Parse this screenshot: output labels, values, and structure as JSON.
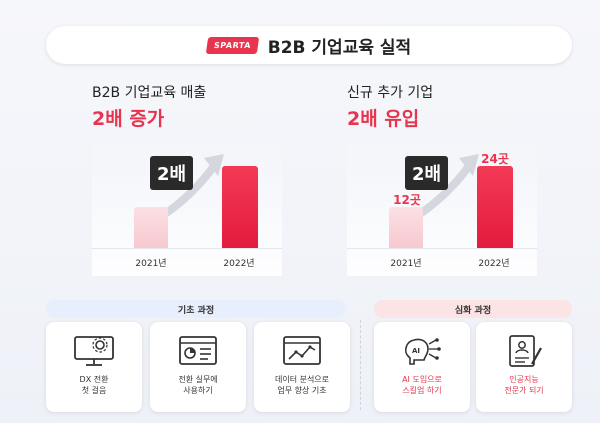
{
  "header": {
    "logo_text": "SPARTA",
    "title": "B2B 기업교육 실적"
  },
  "left_panel": {
    "subtitle": "B2B 기업교육 매출",
    "headline": "2배 증가",
    "badge": "2배",
    "bars": [
      {
        "year": "2021년",
        "relative": 0.5,
        "label": ""
      },
      {
        "year": "2022년",
        "relative": 1.0,
        "label": ""
      }
    ]
  },
  "right_panel": {
    "subtitle": "신규 추가 기업",
    "headline": "2배 유입",
    "badge": "2배",
    "bars": [
      {
        "year": "2021년",
        "relative": 0.5,
        "label": "12곳"
      },
      {
        "year": "2022년",
        "relative": 1.0,
        "label": "24곳"
      }
    ]
  },
  "chart_data": [
    {
      "type": "bar",
      "categories": [
        "2021년",
        "2022년"
      ],
      "values": [
        1,
        2
      ],
      "title": "B2B 기업교육 매출",
      "annotation": "2배"
    },
    {
      "type": "bar",
      "categories": [
        "2021년",
        "2022년"
      ],
      "values": [
        12,
        24
      ],
      "data_labels": [
        "12곳",
        "24곳"
      ],
      "title": "신규 추가 기업",
      "annotation": "2배"
    }
  ],
  "sections": {
    "basic": {
      "label": "기초 과정",
      "cards": [
        {
          "line1": "DX 전환",
          "line2": "첫 걸음",
          "icon": "monitor-gear-icon"
        },
        {
          "line1": "전환 실무에",
          "line2": "사용하기",
          "icon": "dashboard-window-icon"
        },
        {
          "line1": "데이터 분석으로",
          "line2": "업무 향상 기초",
          "icon": "line-chart-window-icon"
        }
      ]
    },
    "advanced": {
      "label": "심화 과정",
      "cards": [
        {
          "line1": "AI 도입으로",
          "line2": "스킬업 하기",
          "icon": "ai-brain-icon"
        },
        {
          "line1": "인공지능",
          "line2": "전문가 되기",
          "icon": "certificate-pen-icon"
        }
      ]
    }
  },
  "colors": {
    "accent": "#e8344e",
    "bar_light": "#f7c9d0",
    "badge_bg": "#2a2a2a"
  }
}
